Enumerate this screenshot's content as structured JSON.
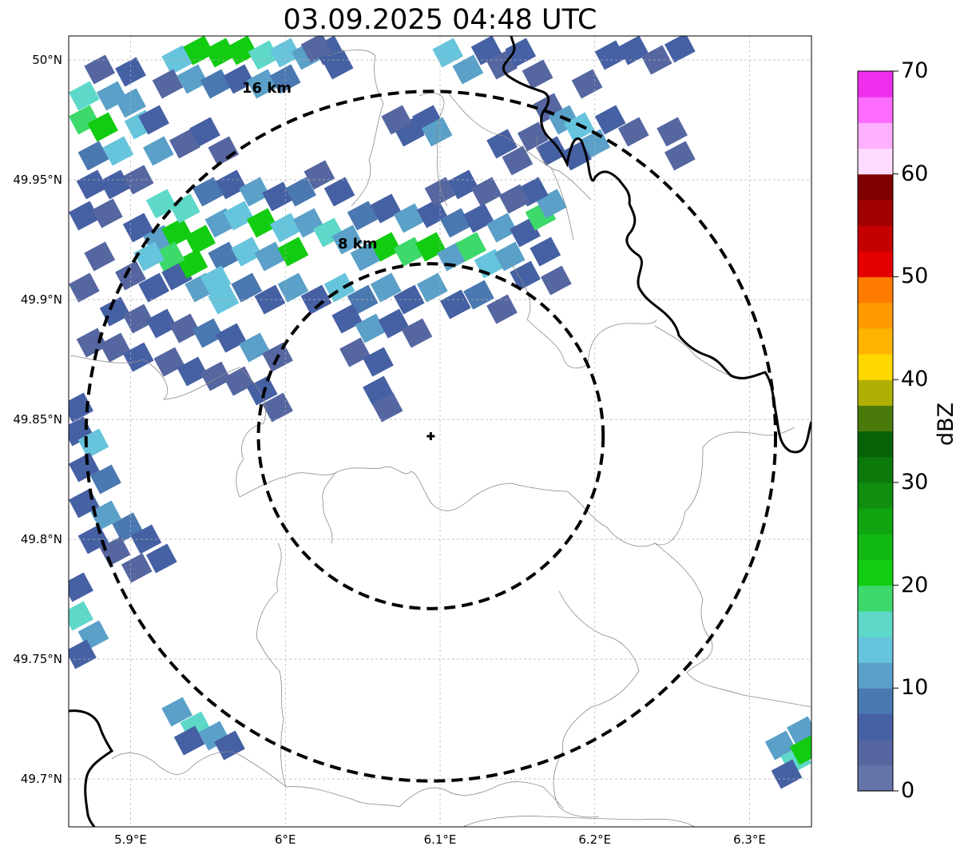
{
  "title": "03.09.2025 04:48 UTC",
  "map": {
    "lon_range": [
      5.86,
      6.34
    ],
    "lat_range": [
      49.68,
      50.01
    ],
    "lat_ticks": [
      {
        "value": 50.0,
        "label": "50°N"
      },
      {
        "value": 49.95,
        "label": "49.95°N"
      },
      {
        "value": 49.9,
        "label": "49.9°N"
      },
      {
        "value": 49.85,
        "label": "49.85°N"
      },
      {
        "value": 49.8,
        "label": "49.8°N"
      },
      {
        "value": 49.75,
        "label": "49.75°N"
      },
      {
        "value": 49.7,
        "label": "49.7°N"
      }
    ],
    "lon_ticks": [
      {
        "value": 5.9,
        "label": "5.9°E"
      },
      {
        "value": 6.0,
        "label": "6°E"
      },
      {
        "value": 6.1,
        "label": "6.1°E"
      },
      {
        "value": 6.2,
        "label": "6.2°E"
      },
      {
        "value": 6.3,
        "label": "6.3°E"
      }
    ],
    "gridlines": true,
    "radar_site": {
      "lon": 6.094,
      "lat": 49.843
    },
    "range_rings": [
      {
        "radius_km": 8,
        "label": "8 km"
      },
      {
        "radius_km": 16,
        "label": "16 km"
      }
    ]
  },
  "colorbar": {
    "label": "dBZ",
    "min": 0,
    "max": 70,
    "ticks": [
      {
        "value": 70,
        "label": "70"
      },
      {
        "value": 60,
        "label": "60"
      },
      {
        "value": 50,
        "label": "50"
      },
      {
        "value": 40,
        "label": "40"
      },
      {
        "value": 30,
        "label": "30"
      },
      {
        "value": 20,
        "label": "20"
      },
      {
        "value": 10,
        "label": "10"
      },
      {
        "value": 0,
        "label": "0"
      }
    ],
    "colors": [
      "#6474a8",
      "#5566a0",
      "#4660a4",
      "#4a78b0",
      "#5aa0c8",
      "#66c4dc",
      "#5ed8c8",
      "#3dd96a",
      "#12cc12",
      "#12b812",
      "#10a410",
      "#0f8e0f",
      "#0b7a0b",
      "#066206",
      "#4a7a0a",
      "#b0b004",
      "#ffd800",
      "#ffb400",
      "#ff9a00",
      "#ff7c00",
      "#e40000",
      "#c40000",
      "#a00000",
      "#7e0000",
      "#ffdcff",
      "#ffb0ff",
      "#ff6cff",
      "#ee30ee"
    ]
  },
  "echo_cells": [
    {
      "lon": 5.87,
      "lat": 49.975,
      "dbz": 18
    },
    {
      "lon": 5.882,
      "lat": 49.972,
      "dbz": 20
    },
    {
      "lon": 5.87,
      "lat": 49.985,
      "dbz": 15
    },
    {
      "lon": 5.888,
      "lat": 49.985,
      "dbz": 12
    },
    {
      "lon": 5.9,
      "lat": 49.982,
      "dbz": 10
    },
    {
      "lon": 5.906,
      "lat": 49.973,
      "dbz": 14
    },
    {
      "lon": 5.892,
      "lat": 49.962,
      "dbz": 13
    },
    {
      "lon": 5.876,
      "lat": 49.96,
      "dbz": 8
    },
    {
      "lon": 5.918,
      "lat": 49.962,
      "dbz": 12
    },
    {
      "lon": 5.915,
      "lat": 49.975,
      "dbz": 5
    },
    {
      "lon": 5.875,
      "lat": 49.948,
      "dbz": 5
    },
    {
      "lon": 5.89,
      "lat": 49.948,
      "dbz": 6
    },
    {
      "lon": 5.905,
      "lat": 49.95,
      "dbz": 4
    },
    {
      "lon": 5.88,
      "lat": 49.996,
      "dbz": 4
    },
    {
      "lon": 5.9,
      "lat": 49.995,
      "dbz": 6
    },
    {
      "lon": 5.87,
      "lat": 49.935,
      "dbz": 5
    },
    {
      "lon": 5.885,
      "lat": 49.936,
      "dbz": 3
    },
    {
      "lon": 5.93,
      "lat": 50.0,
      "dbz": 14
    },
    {
      "lon": 5.944,
      "lat": 50.004,
      "dbz": 20
    },
    {
      "lon": 5.958,
      "lat": 50.003,
      "dbz": 22
    },
    {
      "lon": 5.972,
      "lat": 50.004,
      "dbz": 20
    },
    {
      "lon": 5.986,
      "lat": 50.002,
      "dbz": 17
    },
    {
      "lon": 6.0,
      "lat": 50.003,
      "dbz": 14
    },
    {
      "lon": 6.014,
      "lat": 50.002,
      "dbz": 10
    },
    {
      "lon": 6.028,
      "lat": 50.004,
      "dbz": 6
    },
    {
      "lon": 5.94,
      "lat": 49.992,
      "dbz": 12
    },
    {
      "lon": 5.955,
      "lat": 49.99,
      "dbz": 8
    },
    {
      "lon": 5.97,
      "lat": 49.992,
      "dbz": 6
    },
    {
      "lon": 5.985,
      "lat": 49.99,
      "dbz": 12
    },
    {
      "lon": 6.0,
      "lat": 49.992,
      "dbz": 8
    },
    {
      "lon": 5.924,
      "lat": 49.99,
      "dbz": 4
    },
    {
      "lon": 5.935,
      "lat": 49.965,
      "dbz": 4
    },
    {
      "lon": 5.948,
      "lat": 49.97,
      "dbz": 5
    },
    {
      "lon": 5.96,
      "lat": 49.962,
      "dbz": 3
    },
    {
      "lon": 6.02,
      "lat": 50.005,
      "dbz": 3
    },
    {
      "lon": 6.034,
      "lat": 49.998,
      "dbz": 5
    },
    {
      "lon": 5.905,
      "lat": 49.93,
      "dbz": 5
    },
    {
      "lon": 5.918,
      "lat": 49.925,
      "dbz": 12
    },
    {
      "lon": 5.93,
      "lat": 49.928,
      "dbz": 20
    },
    {
      "lon": 5.945,
      "lat": 49.925,
      "dbz": 20
    },
    {
      "lon": 5.935,
      "lat": 49.938,
      "dbz": 17
    },
    {
      "lon": 5.92,
      "lat": 49.94,
      "dbz": 15
    },
    {
      "lon": 5.958,
      "lat": 49.932,
      "dbz": 10
    },
    {
      "lon": 5.97,
      "lat": 49.935,
      "dbz": 13
    },
    {
      "lon": 5.985,
      "lat": 49.932,
      "dbz": 20
    },
    {
      "lon": 6.0,
      "lat": 49.93,
      "dbz": 14
    },
    {
      "lon": 5.96,
      "lat": 49.918,
      "dbz": 8
    },
    {
      "lon": 5.975,
      "lat": 49.92,
      "dbz": 14
    },
    {
      "lon": 5.99,
      "lat": 49.918,
      "dbz": 12
    },
    {
      "lon": 6.005,
      "lat": 49.92,
      "dbz": 20
    },
    {
      "lon": 5.95,
      "lat": 49.945,
      "dbz": 8
    },
    {
      "lon": 5.965,
      "lat": 49.948,
      "dbz": 5
    },
    {
      "lon": 5.98,
      "lat": 49.945,
      "dbz": 10
    },
    {
      "lon": 5.995,
      "lat": 49.943,
      "dbz": 6
    },
    {
      "lon": 6.01,
      "lat": 49.945,
      "dbz": 8
    },
    {
      "lon": 6.015,
      "lat": 49.932,
      "dbz": 12
    },
    {
      "lon": 6.028,
      "lat": 49.928,
      "dbz": 15
    },
    {
      "lon": 6.04,
      "lat": 49.925,
      "dbz": 10
    },
    {
      "lon": 6.052,
      "lat": 49.918,
      "dbz": 12
    },
    {
      "lon": 6.065,
      "lat": 49.922,
      "dbz": 20
    },
    {
      "lon": 6.08,
      "lat": 49.92,
      "dbz": 18
    },
    {
      "lon": 6.094,
      "lat": 49.922,
      "dbz": 20
    },
    {
      "lon": 6.108,
      "lat": 49.918,
      "dbz": 12
    },
    {
      "lon": 6.12,
      "lat": 49.922,
      "dbz": 18
    },
    {
      "lon": 6.132,
      "lat": 49.915,
      "dbz": 14
    },
    {
      "lon": 6.145,
      "lat": 49.918,
      "dbz": 12
    },
    {
      "lon": 6.155,
      "lat": 49.91,
      "dbz": 5
    },
    {
      "lon": 6.05,
      "lat": 49.935,
      "dbz": 8
    },
    {
      "lon": 6.065,
      "lat": 49.938,
      "dbz": 6
    },
    {
      "lon": 6.08,
      "lat": 49.934,
      "dbz": 10
    },
    {
      "lon": 6.095,
      "lat": 49.936,
      "dbz": 5
    },
    {
      "lon": 6.11,
      "lat": 49.932,
      "dbz": 8
    },
    {
      "lon": 6.125,
      "lat": 49.934,
      "dbz": 6
    },
    {
      "lon": 6.14,
      "lat": 49.93,
      "dbz": 12
    },
    {
      "lon": 6.155,
      "lat": 49.928,
      "dbz": 5
    },
    {
      "lon": 6.165,
      "lat": 49.935,
      "dbz": 18
    },
    {
      "lon": 6.172,
      "lat": 49.94,
      "dbz": 12
    },
    {
      "lon": 6.16,
      "lat": 49.945,
      "dbz": 5
    },
    {
      "lon": 6.168,
      "lat": 49.92,
      "dbz": 6
    },
    {
      "lon": 6.175,
      "lat": 49.908,
      "dbz": 4
    },
    {
      "lon": 6.1,
      "lat": 49.945,
      "dbz": 4
    },
    {
      "lon": 6.115,
      "lat": 49.948,
      "dbz": 5
    },
    {
      "lon": 6.13,
      "lat": 49.945,
      "dbz": 3
    },
    {
      "lon": 6.148,
      "lat": 49.942,
      "dbz": 4
    },
    {
      "lon": 6.035,
      "lat": 49.945,
      "dbz": 5
    },
    {
      "lon": 6.022,
      "lat": 49.952,
      "dbz": 4
    },
    {
      "lon": 5.9,
      "lat": 49.91,
      "dbz": 4
    },
    {
      "lon": 5.915,
      "lat": 49.905,
      "dbz": 5
    },
    {
      "lon": 5.93,
      "lat": 49.91,
      "dbz": 6
    },
    {
      "lon": 5.945,
      "lat": 49.905,
      "dbz": 10
    },
    {
      "lon": 5.96,
      "lat": 49.9,
      "dbz": 14
    },
    {
      "lon": 5.975,
      "lat": 49.905,
      "dbz": 8
    },
    {
      "lon": 5.99,
      "lat": 49.9,
      "dbz": 5
    },
    {
      "lon": 6.005,
      "lat": 49.905,
      "dbz": 12
    },
    {
      "lon": 6.02,
      "lat": 49.9,
      "dbz": 6
    },
    {
      "lon": 6.035,
      "lat": 49.905,
      "dbz": 14
    },
    {
      "lon": 6.05,
      "lat": 49.9,
      "dbz": 8
    },
    {
      "lon": 6.065,
      "lat": 49.905,
      "dbz": 10
    },
    {
      "lon": 6.08,
      "lat": 49.9,
      "dbz": 5
    },
    {
      "lon": 6.095,
      "lat": 49.905,
      "dbz": 12
    },
    {
      "lon": 6.11,
      "lat": 49.898,
      "dbz": 6
    },
    {
      "lon": 6.125,
      "lat": 49.902,
      "dbz": 8
    },
    {
      "lon": 6.14,
      "lat": 49.896,
      "dbz": 4
    },
    {
      "lon": 5.88,
      "lat": 49.918,
      "dbz": 3
    },
    {
      "lon": 5.87,
      "lat": 49.905,
      "dbz": 4
    },
    {
      "lon": 5.89,
      "lat": 49.895,
      "dbz": 5
    },
    {
      "lon": 5.905,
      "lat": 49.892,
      "dbz": 3
    },
    {
      "lon": 5.92,
      "lat": 49.89,
      "dbz": 6
    },
    {
      "lon": 5.935,
      "lat": 49.888,
      "dbz": 4
    },
    {
      "lon": 5.95,
      "lat": 49.886,
      "dbz": 8
    },
    {
      "lon": 5.965,
      "lat": 49.884,
      "dbz": 5
    },
    {
      "lon": 5.98,
      "lat": 49.88,
      "dbz": 10
    },
    {
      "lon": 5.995,
      "lat": 49.876,
      "dbz": 4
    },
    {
      "lon": 6.04,
      "lat": 49.892,
      "dbz": 5
    },
    {
      "lon": 6.055,
      "lat": 49.888,
      "dbz": 10
    },
    {
      "lon": 6.07,
      "lat": 49.89,
      "dbz": 6
    },
    {
      "lon": 6.085,
      "lat": 49.886,
      "dbz": 4
    },
    {
      "lon": 6.045,
      "lat": 49.878,
      "dbz": 4
    },
    {
      "lon": 6.06,
      "lat": 49.874,
      "dbz": 5
    },
    {
      "lon": 5.875,
      "lat": 49.882,
      "dbz": 3
    },
    {
      "lon": 5.89,
      "lat": 49.88,
      "dbz": 4
    },
    {
      "lon": 5.905,
      "lat": 49.876,
      "dbz": 5
    },
    {
      "lon": 5.925,
      "lat": 49.874,
      "dbz": 4
    },
    {
      "lon": 5.94,
      "lat": 49.87,
      "dbz": 6
    },
    {
      "lon": 5.955,
      "lat": 49.868,
      "dbz": 3
    },
    {
      "lon": 5.97,
      "lat": 49.866,
      "dbz": 4
    },
    {
      "lon": 5.985,
      "lat": 49.862,
      "dbz": 5
    },
    {
      "lon": 5.995,
      "lat": 49.855,
      "dbz": 3
    },
    {
      "lon": 6.06,
      "lat": 49.862,
      "dbz": 5
    },
    {
      "lon": 6.066,
      "lat": 49.855,
      "dbz": 4
    },
    {
      "lon": 5.94,
      "lat": 49.915,
      "dbz": 20
    },
    {
      "lon": 5.925,
      "lat": 49.918,
      "dbz": 18
    },
    {
      "lon": 5.912,
      "lat": 49.918,
      "dbz": 14
    },
    {
      "lon": 5.955,
      "lat": 49.908,
      "dbz": 13
    },
    {
      "lon": 6.105,
      "lat": 50.003,
      "dbz": 14
    },
    {
      "lon": 6.118,
      "lat": 49.996,
      "dbz": 10
    },
    {
      "lon": 6.13,
      "lat": 50.004,
      "dbz": 6
    },
    {
      "lon": 6.14,
      "lat": 49.998,
      "dbz": 4
    },
    {
      "lon": 6.152,
      "lat": 50.003,
      "dbz": 5
    },
    {
      "lon": 6.163,
      "lat": 49.994,
      "dbz": 3
    },
    {
      "lon": 6.17,
      "lat": 49.98,
      "dbz": 4
    },
    {
      "lon": 6.18,
      "lat": 49.975,
      "dbz": 12
    },
    {
      "lon": 6.19,
      "lat": 49.972,
      "dbz": 14
    },
    {
      "lon": 6.2,
      "lat": 49.965,
      "dbz": 10
    },
    {
      "lon": 6.188,
      "lat": 49.96,
      "dbz": 6
    },
    {
      "lon": 6.172,
      "lat": 49.962,
      "dbz": 5
    },
    {
      "lon": 6.16,
      "lat": 49.968,
      "dbz": 4
    },
    {
      "lon": 6.21,
      "lat": 49.975,
      "dbz": 5
    },
    {
      "lon": 6.225,
      "lat": 49.97,
      "dbz": 4
    },
    {
      "lon": 6.195,
      "lat": 49.99,
      "dbz": 3
    },
    {
      "lon": 6.21,
      "lat": 50.002,
      "dbz": 5
    },
    {
      "lon": 6.225,
      "lat": 50.004,
      "dbz": 6
    },
    {
      "lon": 6.24,
      "lat": 50.0,
      "dbz": 4
    },
    {
      "lon": 6.255,
      "lat": 50.005,
      "dbz": 5
    },
    {
      "lon": 6.25,
      "lat": 49.97,
      "dbz": 4
    },
    {
      "lon": 6.255,
      "lat": 49.96,
      "dbz": 3
    },
    {
      "lon": 6.14,
      "lat": 49.965,
      "dbz": 5
    },
    {
      "lon": 6.15,
      "lat": 49.958,
      "dbz": 4
    },
    {
      "lon": 6.08,
      "lat": 49.97,
      "dbz": 5
    },
    {
      "lon": 6.092,
      "lat": 49.975,
      "dbz": 6
    },
    {
      "lon": 6.098,
      "lat": 49.97,
      "dbz": 12
    },
    {
      "lon": 6.072,
      "lat": 49.975,
      "dbz": 4
    },
    {
      "lon": 5.866,
      "lat": 49.845,
      "dbz": 6
    },
    {
      "lon": 5.876,
      "lat": 49.84,
      "dbz": 14
    },
    {
      "lon": 5.87,
      "lat": 49.83,
      "dbz": 5
    },
    {
      "lon": 5.884,
      "lat": 49.825,
      "dbz": 8
    },
    {
      "lon": 5.866,
      "lat": 49.855,
      "dbz": 5
    },
    {
      "lon": 5.87,
      "lat": 49.815,
      "dbz": 6
    },
    {
      "lon": 5.884,
      "lat": 49.81,
      "dbz": 10
    },
    {
      "lon": 5.898,
      "lat": 49.805,
      "dbz": 8
    },
    {
      "lon": 5.91,
      "lat": 49.8,
      "dbz": 5
    },
    {
      "lon": 5.92,
      "lat": 49.792,
      "dbz": 6
    },
    {
      "lon": 5.876,
      "lat": 49.8,
      "dbz": 5
    },
    {
      "lon": 5.89,
      "lat": 49.795,
      "dbz": 4
    },
    {
      "lon": 5.904,
      "lat": 49.788,
      "dbz": 3
    },
    {
      "lon": 5.866,
      "lat": 49.768,
      "dbz": 15
    },
    {
      "lon": 5.876,
      "lat": 49.76,
      "dbz": 10
    },
    {
      "lon": 5.868,
      "lat": 49.752,
      "dbz": 6
    },
    {
      "lon": 5.866,
      "lat": 49.78,
      "dbz": 5
    },
    {
      "lon": 5.93,
      "lat": 49.728,
      "dbz": 10
    },
    {
      "lon": 5.942,
      "lat": 49.722,
      "dbz": 15
    },
    {
      "lon": 5.954,
      "lat": 49.718,
      "dbz": 12
    },
    {
      "lon": 5.964,
      "lat": 49.714,
      "dbz": 6
    },
    {
      "lon": 5.938,
      "lat": 49.716,
      "dbz": 5
    },
    {
      "lon": 6.32,
      "lat": 49.714,
      "dbz": 10
    },
    {
      "lon": 6.33,
      "lat": 49.708,
      "dbz": 15
    },
    {
      "lon": 6.334,
      "lat": 49.72,
      "dbz": 12
    },
    {
      "lon": 6.336,
      "lat": 49.712,
      "dbz": 20
    },
    {
      "lon": 6.324,
      "lat": 49.702,
      "dbz": 6
    }
  ]
}
